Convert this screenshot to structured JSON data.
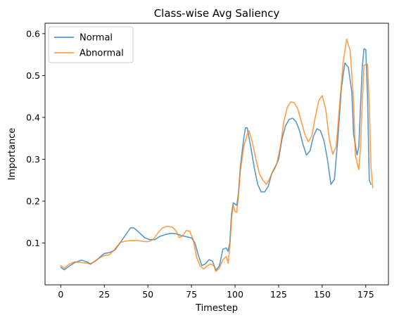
{
  "chart_data": {
    "type": "line",
    "title": "Class-wise Avg Saliency",
    "xlabel": "Timestep",
    "ylabel": "Importance",
    "xlim": [
      -9,
      188
    ],
    "ylim": [
      0.0,
      0.625
    ],
    "xticks": [
      0,
      25,
      50,
      75,
      100,
      125,
      150,
      175
    ],
    "yticks": [
      0.1,
      0.2,
      0.3,
      0.4,
      0.5,
      0.6
    ],
    "legend": "top-left",
    "grid": false,
    "series": [
      {
        "name": "Normal",
        "color": "#1f77b4",
        "points": [
          [
            0,
            0.042
          ],
          [
            2,
            0.036
          ],
          [
            5,
            0.045
          ],
          [
            8,
            0.053
          ],
          [
            12,
            0.059
          ],
          [
            15,
            0.055
          ],
          [
            17,
            0.05
          ],
          [
            20,
            0.057
          ],
          [
            23,
            0.068
          ],
          [
            25,
            0.075
          ],
          [
            28,
            0.077
          ],
          [
            31,
            0.083
          ],
          [
            34,
            0.1
          ],
          [
            37,
            0.118
          ],
          [
            40,
            0.136
          ],
          [
            42,
            0.136
          ],
          [
            45,
            0.125
          ],
          [
            48,
            0.113
          ],
          [
            51,
            0.108
          ],
          [
            54,
            0.108
          ],
          [
            57,
            0.116
          ],
          [
            60,
            0.12
          ],
          [
            63,
            0.123
          ],
          [
            66,
            0.122
          ],
          [
            69,
            0.118
          ],
          [
            72,
            0.115
          ],
          [
            75,
            0.112
          ],
          [
            77,
            0.1
          ],
          [
            79,
            0.07
          ],
          [
            81,
            0.046
          ],
          [
            83,
            0.05
          ],
          [
            85,
            0.06
          ],
          [
            87,
            0.057
          ],
          [
            89,
            0.035
          ],
          [
            91,
            0.045
          ],
          [
            93,
            0.085
          ],
          [
            95,
            0.088
          ],
          [
            96,
            0.08
          ],
          [
            97,
            0.1
          ],
          [
            98,
            0.17
          ],
          [
            99,
            0.196
          ],
          [
            101,
            0.19
          ],
          [
            102,
            0.22
          ],
          [
            103,
            0.28
          ],
          [
            105,
            0.35
          ],
          [
            106,
            0.375
          ],
          [
            107,
            0.375
          ],
          [
            109,
            0.33
          ],
          [
            111,
            0.28
          ],
          [
            113,
            0.24
          ],
          [
            115,
            0.222
          ],
          [
            117,
            0.222
          ],
          [
            119,
            0.235
          ],
          [
            121,
            0.265
          ],
          [
            123,
            0.28
          ],
          [
            125,
            0.3
          ],
          [
            127,
            0.35
          ],
          [
            129,
            0.38
          ],
          [
            131,
            0.395
          ],
          [
            133,
            0.398
          ],
          [
            135,
            0.39
          ],
          [
            137,
            0.368
          ],
          [
            139,
            0.335
          ],
          [
            141,
            0.31
          ],
          [
            143,
            0.32
          ],
          [
            145,
            0.355
          ],
          [
            147,
            0.373
          ],
          [
            149,
            0.368
          ],
          [
            151,
            0.345
          ],
          [
            153,
            0.3
          ],
          [
            155,
            0.24
          ],
          [
            157,
            0.252
          ],
          [
            159,
            0.35
          ],
          [
            161,
            0.47
          ],
          [
            163,
            0.53
          ],
          [
            165,
            0.52
          ],
          [
            167,
            0.46
          ],
          [
            168,
            0.36
          ],
          [
            170,
            0.31
          ],
          [
            171,
            0.33
          ],
          [
            172,
            0.43
          ],
          [
            173,
            0.52
          ],
          [
            174,
            0.564
          ],
          [
            175,
            0.562
          ],
          [
            176,
            0.45
          ],
          [
            177,
            0.25
          ],
          [
            178,
            0.24
          ]
        ]
      },
      {
        "name": "Abnormal",
        "color": "#ff7f0e",
        "points": [
          [
            0,
            0.046
          ],
          [
            2,
            0.04
          ],
          [
            5,
            0.05
          ],
          [
            8,
            0.055
          ],
          [
            12,
            0.053
          ],
          [
            15,
            0.052
          ],
          [
            17,
            0.049
          ],
          [
            20,
            0.058
          ],
          [
            23,
            0.066
          ],
          [
            25,
            0.07
          ],
          [
            28,
            0.072
          ],
          [
            31,
            0.085
          ],
          [
            34,
            0.101
          ],
          [
            37,
            0.104
          ],
          [
            40,
            0.106
          ],
          [
            44,
            0.106
          ],
          [
            47,
            0.104
          ],
          [
            50,
            0.103
          ],
          [
            53,
            0.108
          ],
          [
            55,
            0.12
          ],
          [
            58,
            0.135
          ],
          [
            61,
            0.14
          ],
          [
            64,
            0.138
          ],
          [
            66,
            0.13
          ],
          [
            68,
            0.113
          ],
          [
            70,
            0.117
          ],
          [
            72,
            0.13
          ],
          [
            74,
            0.128
          ],
          [
            76,
            0.108
          ],
          [
            78,
            0.065
          ],
          [
            80,
            0.045
          ],
          [
            82,
            0.038
          ],
          [
            84,
            0.045
          ],
          [
            86,
            0.05
          ],
          [
            88,
            0.045
          ],
          [
            89,
            0.032
          ],
          [
            91,
            0.04
          ],
          [
            93,
            0.06
          ],
          [
            95,
            0.068
          ],
          [
            96,
            0.052
          ],
          [
            97,
            0.09
          ],
          [
            98,
            0.16
          ],
          [
            99,
            0.19
          ],
          [
            100,
            0.175
          ],
          [
            101,
            0.173
          ],
          [
            102,
            0.215
          ],
          [
            103,
            0.27
          ],
          [
            105,
            0.33
          ],
          [
            107,
            0.36
          ],
          [
            108,
            0.368
          ],
          [
            110,
            0.34
          ],
          [
            112,
            0.3
          ],
          [
            114,
            0.265
          ],
          [
            116,
            0.25
          ],
          [
            118,
            0.24
          ],
          [
            120,
            0.255
          ],
          [
            122,
            0.275
          ],
          [
            124,
            0.29
          ],
          [
            126,
            0.33
          ],
          [
            128,
            0.39
          ],
          [
            130,
            0.425
          ],
          [
            132,
            0.437
          ],
          [
            134,
            0.435
          ],
          [
            136,
            0.42
          ],
          [
            138,
            0.39
          ],
          [
            140,
            0.36
          ],
          [
            142,
            0.342
          ],
          [
            144,
            0.355
          ],
          [
            146,
            0.4
          ],
          [
            148,
            0.44
          ],
          [
            150,
            0.452
          ],
          [
            152,
            0.42
          ],
          [
            154,
            0.35
          ],
          [
            156,
            0.312
          ],
          [
            158,
            0.33
          ],
          [
            160,
            0.43
          ],
          [
            162,
            0.53
          ],
          [
            164,
            0.587
          ],
          [
            166,
            0.56
          ],
          [
            168,
            0.44
          ],
          [
            169,
            0.31
          ],
          [
            171,
            0.275
          ],
          [
            172,
            0.33
          ],
          [
            173,
            0.44
          ],
          [
            174,
            0.525
          ],
          [
            176,
            0.527
          ],
          [
            177,
            0.43
          ],
          [
            178,
            0.28
          ],
          [
            179,
            0.232
          ]
        ]
      }
    ]
  }
}
